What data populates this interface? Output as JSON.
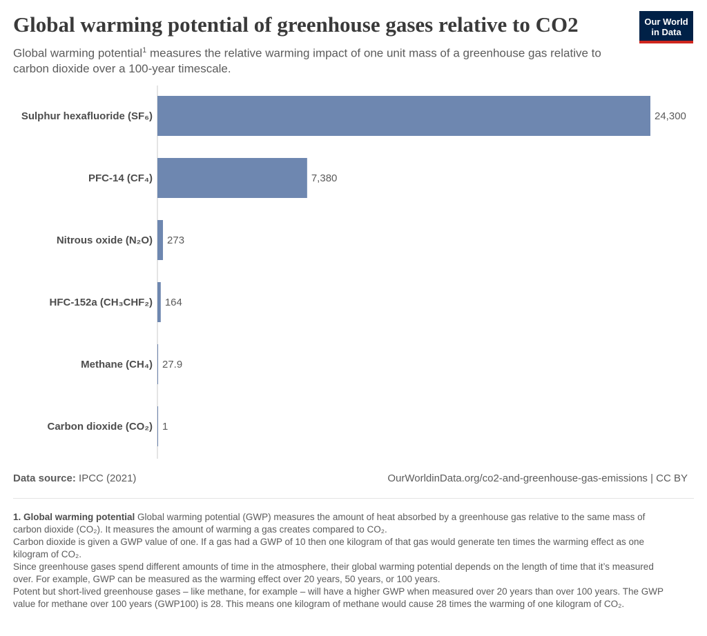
{
  "header": {
    "title": "Global warming potential of greenhouse gases relative to CO2",
    "subtitle_before": "Global warming potential",
    "subtitle_sup": "1",
    "subtitle_after": " measures the relative warming impact of one unit mass of a greenhouse gas relative to carbon dioxide over a 100-year timescale.",
    "logo_line1": "Our World",
    "logo_line2": "in Data"
  },
  "colors": {
    "bar": "#6e87b0",
    "axis": "#c8c8c8",
    "logo_bg": "#002147",
    "logo_accent": "#ce261e"
  },
  "chart_data": {
    "type": "bar",
    "orientation": "horizontal",
    "categories": [
      "Sulphur hexafluoride (SF₆)",
      "PFC-14 (CF₄)",
      "Nitrous oxide (N₂O)",
      "HFC-152a (CH₃CHF₂)",
      "Methane (CH₄)",
      "Carbon dioxide (CO₂)"
    ],
    "values": [
      24300,
      7380,
      273,
      164,
      27.9,
      1
    ],
    "value_labels": [
      "24,300",
      "7,380",
      "273",
      "164",
      "27.9",
      "1"
    ],
    "xlim": [
      0,
      24300
    ],
    "grid": false
  },
  "footer": {
    "source_label": "Data source:",
    "source_value": " IPCC (2021)",
    "url": "OurWorldinData.org/co2-and-greenhouse-gas-emissions | CC BY"
  },
  "note": {
    "heading": "1. Global warming potential",
    "p1": " Global warming potential (GWP) measures the amount of heat absorbed by a greenhouse gas relative to the same mass of carbon dioxide (CO₂). It measures the amount of warming a gas creates compared to CO₂.",
    "p2": "Carbon dioxide is given a GWP value of one. If a gas had a GWP of 10 then one kilogram of that gas would generate ten times the warming effect as one kilogram of CO₂.",
    "p3": "Since greenhouse gases spend different amounts of time in the atmosphere, their global warming potential depends on the length of time that it’s measured over. For example, GWP can be measured as the warming effect over 20 years, 50 years, or 100 years.",
    "p4": "Potent but short-lived greenhouse gases – like methane, for example – will have a higher GWP when measured over 20 years than over 100 years. The GWP value for methane over 100 years (GWP100) is 28. This means one kilogram of methane would cause 28 times the warming of one kilogram of CO₂."
  }
}
